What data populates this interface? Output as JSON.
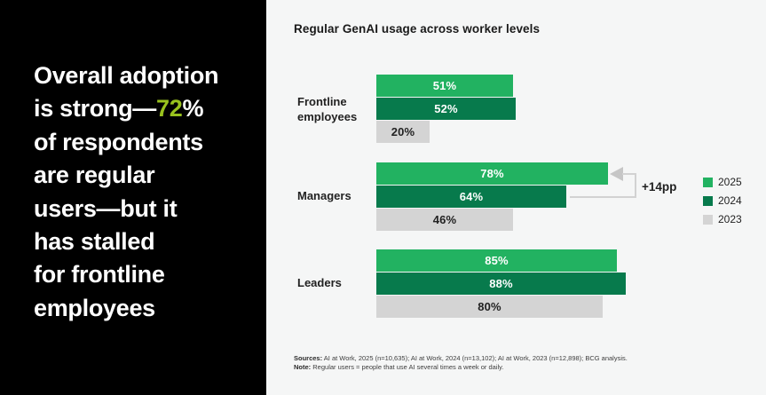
{
  "left_panel": {
    "background": "#000000",
    "text_color": "#FFFFFF",
    "accent_color": "#99C21E",
    "headline_lines": [
      {
        "text": "Overall adoption"
      },
      {
        "pre": "is strong—",
        "accent": "72",
        "post": "%"
      },
      {
        "text": "of respondents"
      },
      {
        "text": "are regular"
      },
      {
        "text": "users—but it"
      },
      {
        "text": "has stalled"
      },
      {
        "text": "for frontline"
      },
      {
        "text": "employees"
      }
    ]
  },
  "chart": {
    "title": "Regular GenAI usage across worker levels",
    "legend": [
      {
        "label": "2025",
        "color": "#22B261"
      },
      {
        "label": "2024",
        "color": "#077A4C"
      },
      {
        "label": "2023",
        "color": "#D4D4D4"
      }
    ],
    "footnotes": {
      "sources_label": "Sources:",
      "sources_text": "AI at Work, 2025 (n=10,635);  AI at Work, 2024 (n=13,102); AI at Work, 2023 (n=12,898); BCG analysis.",
      "note_label": "Note:",
      "note_text": "Regular users = people that use AI several times a week or daily."
    }
  },
  "chart_data": {
    "type": "bar",
    "orientation": "horizontal",
    "title": "Regular GenAI usage across worker levels",
    "categories": [
      "Frontline employees",
      "Managers",
      "Leaders"
    ],
    "series": [
      {
        "name": "2025",
        "color": "#22B261",
        "label_color": "#FFFFFF",
        "values": [
          51,
          78,
          85
        ]
      },
      {
        "name": "2024",
        "color": "#077A4C",
        "label_color": "#FFFFFF",
        "values": [
          52,
          64,
          88
        ]
      },
      {
        "name": "2023",
        "color": "#D4D4D4",
        "label_color": "#222222",
        "values": [
          20,
          46,
          80
        ]
      }
    ],
    "value_suffix": "%",
    "xlim": [
      0,
      100
    ],
    "grid": false,
    "legend_position": "right",
    "annotation": {
      "text": "+14pp",
      "category": "Managers",
      "compares": [
        "2024",
        "2025"
      ]
    }
  }
}
